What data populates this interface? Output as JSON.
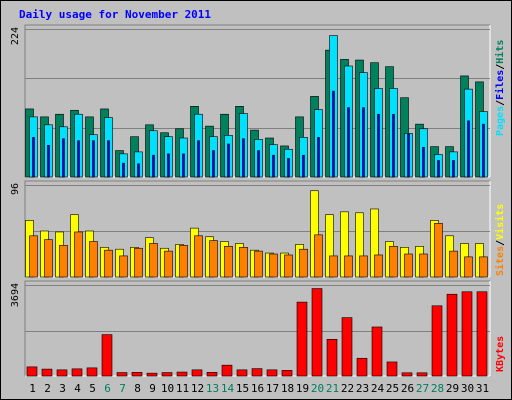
{
  "title": "Daily usage for November 2011",
  "colors": {
    "pages": "#00e0ff",
    "files": "#0000ff",
    "hits": "#00805c",
    "visits": "#ffff00",
    "sites": "#ff8000",
    "kbytes": "#ff0000",
    "weekend_label": "#00805c",
    "weekday_label": "#000000"
  },
  "chart_data": [
    {
      "type": "bar",
      "name": "hits-files-pages",
      "ymax_label": "224",
      "ylim": [
        0,
        224
      ],
      "legend": [
        "Pages",
        "/",
        "Files",
        "/",
        "Hits"
      ],
      "series": [
        {
          "name": "Hits",
          "values": [
            103,
            91,
            95,
            101,
            91,
            103,
            40,
            61,
            79,
            67,
            73,
            107,
            77,
            95,
            107,
            71,
            59,
            47,
            91,
            122,
            192,
            178,
            177,
            173,
            167,
            120,
            80,
            46,
            46,
            153,
            144
          ]
        },
        {
          "name": "Files",
          "values": [
            60,
            48,
            58,
            55,
            55,
            55,
            21,
            20,
            33,
            35,
            35,
            55,
            40,
            50,
            58,
            40,
            33,
            28,
            33,
            60,
            130,
            105,
            105,
            95,
            95,
            65,
            45,
            25,
            25,
            85,
            80
          ]
        },
        {
          "name": "Pages",
          "values": [
            91,
            79,
            76,
            95,
            64,
            90,
            35,
            38,
            70,
            61,
            59,
            95,
            61,
            63,
            96,
            57,
            49,
            42,
            60,
            102,
            214,
            168,
            158,
            134,
            134,
            66,
            73,
            34,
            38,
            133,
            99
          ]
        }
      ],
      "categories": [
        "1",
        "2",
        "3",
        "4",
        "5",
        "6",
        "7",
        "8",
        "9",
        "10",
        "11",
        "12",
        "13",
        "14",
        "15",
        "16",
        "17",
        "18",
        "19",
        "20",
        "21",
        "22",
        "23",
        "24",
        "25",
        "26",
        "27",
        "28",
        "29",
        "30",
        "31"
      ]
    },
    {
      "type": "bar",
      "name": "visits-sites",
      "ymax_label": "96",
      "ylim": [
        0,
        96
      ],
      "legend": [
        "Sites",
        "/",
        "Visits"
      ],
      "series": [
        {
          "name": "Visits",
          "values": [
            59,
            48,
            47,
            65,
            48,
            31,
            29,
            31,
            41,
            30,
            34,
            51,
            42,
            37,
            35,
            28,
            25,
            25,
            34,
            90,
            65,
            68,
            67,
            71,
            37,
            31,
            32,
            59,
            43,
            35,
            35
          ]
        },
        {
          "name": "Sites",
          "values": [
            43,
            39,
            33,
            47,
            37,
            28,
            22,
            30,
            35,
            27,
            33,
            43,
            38,
            32,
            31,
            27,
            24,
            23,
            29,
            44,
            22,
            22,
            22,
            23,
            32,
            24,
            24,
            56,
            27,
            21,
            21
          ]
        }
      ]
    },
    {
      "type": "bar",
      "name": "kbytes",
      "ymax_label": "3694",
      "ylim": [
        0,
        3694
      ],
      "legend": [
        "KBytes"
      ],
      "series": [
        {
          "name": "KBytes",
          "values": [
            370,
            280,
            250,
            290,
            330,
            1680,
            140,
            150,
            115,
            140,
            160,
            250,
            150,
            440,
            250,
            300,
            250,
            230,
            3000,
            3550,
            1490,
            2370,
            720,
            1990,
            570,
            130,
            130,
            2850,
            3320,
            3420,
            3420
          ]
        }
      ]
    }
  ]
}
